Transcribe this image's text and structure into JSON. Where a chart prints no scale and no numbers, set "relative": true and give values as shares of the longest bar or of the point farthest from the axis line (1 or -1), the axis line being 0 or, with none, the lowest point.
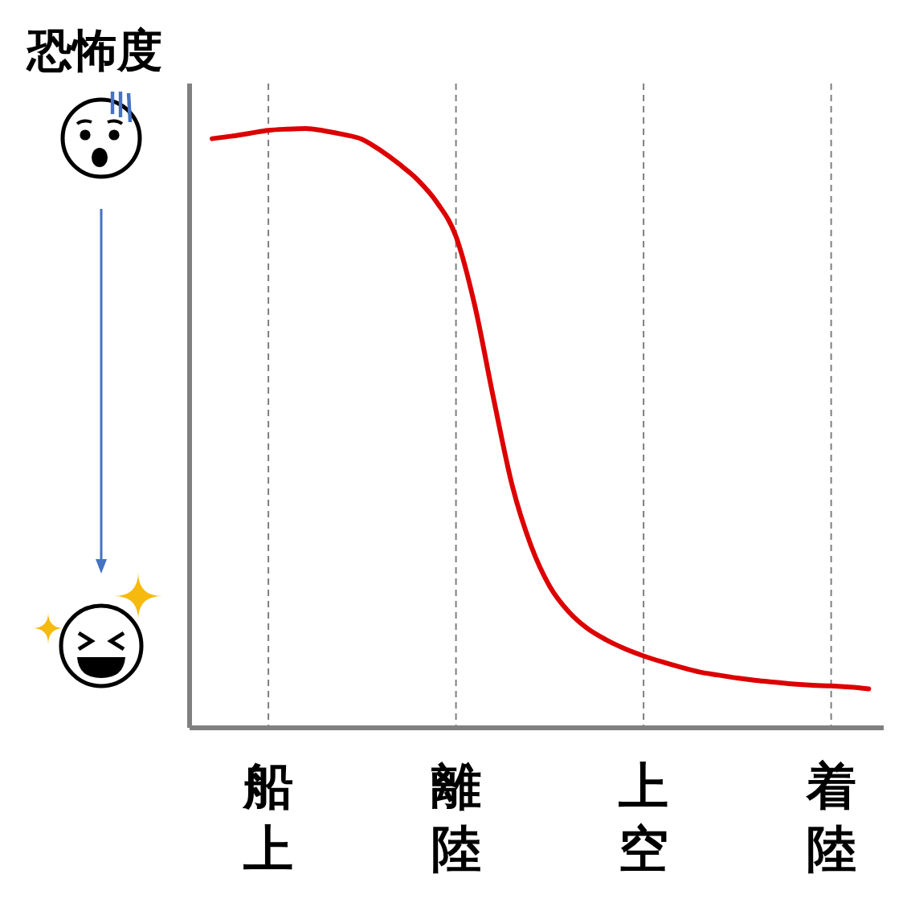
{
  "chart_data": {
    "type": "line",
    "ylabel": "恐怖度",
    "relative": true,
    "categories": [
      null,
      null,
      null,
      "船上",
      null,
      null,
      null,
      null,
      null,
      null,
      null,
      null,
      null,
      "離陸",
      null,
      null,
      null,
      null,
      null,
      null,
      null,
      null,
      null,
      "上空",
      null,
      null,
      null,
      null,
      null,
      null,
      null,
      null,
      null,
      "着陸",
      null,
      null
    ],
    "series": [
      {
        "color": "#dd0000",
        "values": [
          0.983,
          0.987,
          0.992,
          0.997,
          0.999,
          1.0,
          0.996,
          0.99,
          0.982,
          0.963,
          0.94,
          0.913,
          0.876,
          0.82,
          0.705,
          0.55,
          0.404,
          0.304,
          0.236,
          0.194,
          0.166,
          0.147,
          0.132,
          0.12,
          0.11,
          0.101,
          0.093,
          0.088,
          0.083,
          0.079,
          0.076,
          0.073,
          0.071,
          0.07,
          0.068,
          0.065
        ]
      }
    ],
    "grid": "x",
    "marker": "none",
    "line_style": "solid"
  }
}
